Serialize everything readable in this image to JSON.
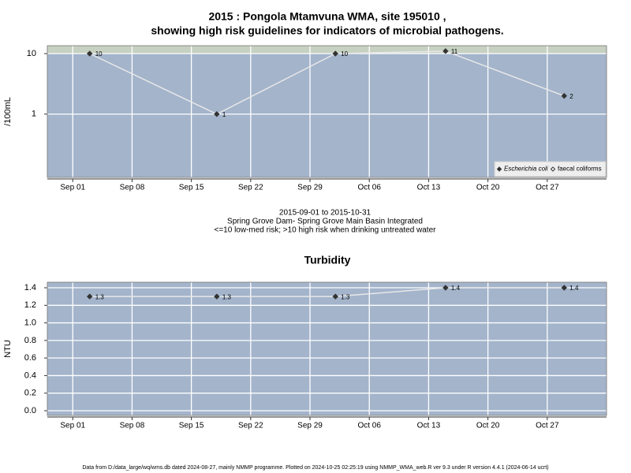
{
  "chart_data": [
    {
      "type": "line",
      "title": [
        "2015 : Pongola Mtamvuna WMA, site 195010 ,",
        "showing high risk guidelines for indicators of microbial pathogens."
      ],
      "y_label": "/100mL",
      "log_scale": true,
      "grid": true,
      "high_risk_threshold": 10,
      "x": [
        "2015-09-03",
        "2015-09-18",
        "2015-10-02",
        "2015-10-15",
        "2015-10-29"
      ],
      "xlim": [
        "2015-08-29",
        "2015-11-03"
      ],
      "xticks": [
        {
          "value": "2015-09-01",
          "label": "Sep 01"
        },
        {
          "value": "2015-09-08",
          "label": "Sep 08"
        },
        {
          "value": "2015-09-15",
          "label": "Sep 15"
        },
        {
          "value": "2015-09-22",
          "label": "Sep 22"
        },
        {
          "value": "2015-09-29",
          "label": "Sep 29"
        },
        {
          "value": "2015-10-06",
          "label": "Oct 06"
        },
        {
          "value": "2015-10-13",
          "label": "Oct 13"
        },
        {
          "value": "2015-10-20",
          "label": "Oct 20"
        },
        {
          "value": "2015-10-27",
          "label": "Oct 27"
        }
      ],
      "ylim": [
        0.09,
        13.5
      ],
      "yticks": [
        1,
        10
      ],
      "legend_position": "bottom-right",
      "series": [
        {
          "name": "Escherichia coli",
          "color": "#333333",
          "marker": "filled",
          "values": [
            10,
            1,
            10,
            11,
            2
          ]
        },
        {
          "name": "faecal coliforms",
          "color": "#333333",
          "marker": "open",
          "values": [
            null,
            null,
            null,
            null,
            null
          ]
        }
      ],
      "notes": [
        "2015-09-01 to 2015-10-31",
        "Spring Grove Dam- Spring Grove Main Basin Integrated",
        "<=10 low-med risk; >10 high risk when drinking untreated water"
      ]
    },
    {
      "type": "line",
      "title": [
        "Turbidity"
      ],
      "y_label": "NTU",
      "log_scale": false,
      "grid": true,
      "x": [
        "2015-09-03",
        "2015-09-18",
        "2015-10-02",
        "2015-10-15",
        "2015-10-29"
      ],
      "xlim": [
        "2015-08-29",
        "2015-11-03"
      ],
      "xticks": [
        {
          "value": "2015-09-01",
          "label": "Sep 01"
        },
        {
          "value": "2015-09-08",
          "label": "Sep 08"
        },
        {
          "value": "2015-09-15",
          "label": "Sep 15"
        },
        {
          "value": "2015-09-22",
          "label": "Sep 22"
        },
        {
          "value": "2015-09-29",
          "label": "Sep 29"
        },
        {
          "value": "2015-10-06",
          "label": "Oct 06"
        },
        {
          "value": "2015-10-13",
          "label": "Oct 13"
        },
        {
          "value": "2015-10-20",
          "label": "Oct 20"
        },
        {
          "value": "2015-10-27",
          "label": "Oct 27"
        }
      ],
      "ylim": [
        -0.054,
        1.463
      ],
      "yticks": [
        {
          "value": 0,
          "label": "0.0"
        },
        0.2,
        0.4,
        0.6,
        0.8,
        {
          "value": 1,
          "label": "1.0"
        },
        1.2,
        1.4
      ],
      "series": [
        {
          "name": "Turbidity",
          "color": "#333333",
          "marker": "filled",
          "values": [
            1.3,
            1.3,
            1.3,
            1.4,
            1.4
          ]
        }
      ]
    }
  ],
  "footer": "Data from D:/data_large/wq/wms.db dated 2024-08-27, mainly NMMP programme. Plotted on 2024-10-25 02:25:19 using NMMP_WMA_web.R ver 9.3 under R version 4.4.1 (2024-06-14 ucrt)"
}
